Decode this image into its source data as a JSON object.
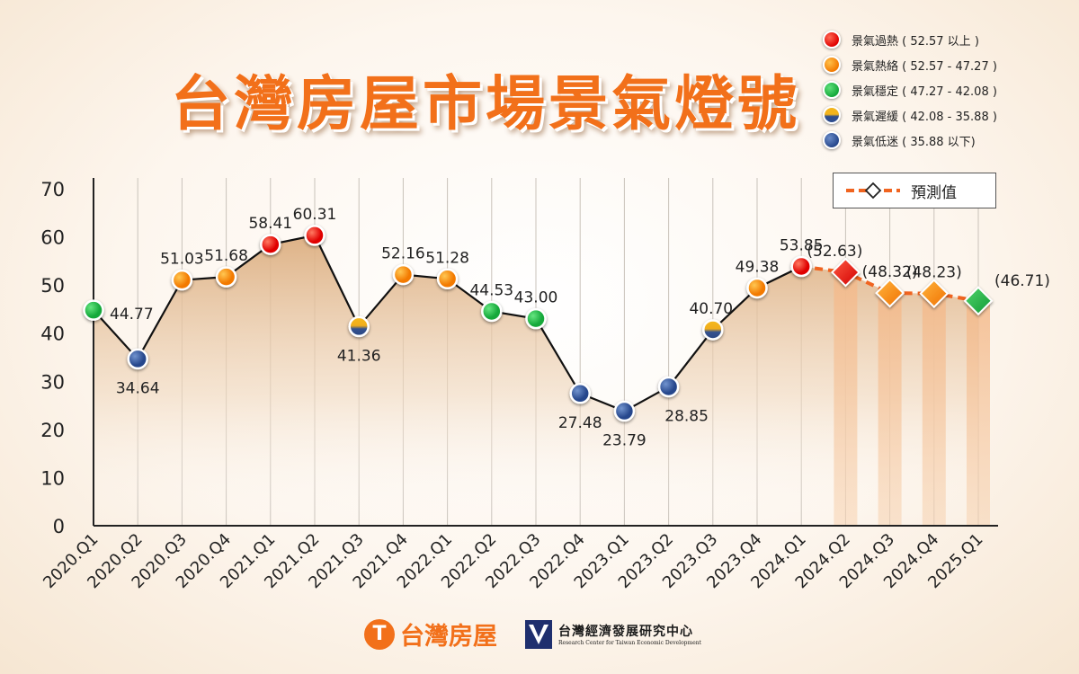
{
  "title": "台灣房屋市場景氣燈號",
  "legend": [
    {
      "color": "red",
      "label": "景氣過熱 ( 52.57 以上 )"
    },
    {
      "color": "orange",
      "label": "景氣熱絡 ( 52.57 - 47.27 )"
    },
    {
      "color": "green",
      "label": "景氣穩定 ( 47.27 - 42.08 )"
    },
    {
      "color": "yellowblue",
      "label": "景氣遲緩 ( 42.08 - 35.88 )"
    },
    {
      "color": "blue",
      "label": "景氣低迷 ( 35.88 以下)"
    }
  ],
  "forecast_legend_label": "預測值",
  "colors": {
    "red": "#e60000",
    "orange": "#f5820a",
    "green": "#1db547",
    "yellowblue": "#f3b41c",
    "blue": "#2f4e8f",
    "line": "#111111",
    "forecast_line": "#f06420",
    "area_top": "#e0b489",
    "forecast_bar": "#f5c9a3",
    "title": "#f2701a"
  },
  "chart_data": {
    "type": "line",
    "ylim": [
      0,
      70
    ],
    "yticks": [
      0,
      10,
      20,
      30,
      40,
      50,
      60,
      70
    ],
    "categories": [
      "2020.Q1",
      "2020.Q2",
      "2020.Q3",
      "2020.Q4",
      "2021.Q1",
      "2021.Q2",
      "2021.Q3",
      "2021.Q4",
      "2022.Q1",
      "2022.Q2",
      "2022.Q3",
      "2022.Q4",
      "2023.Q1",
      "2023.Q2",
      "2023.Q3",
      "2023.Q4",
      "2024.Q1",
      "2024.Q2",
      "2024.Q3",
      "2024.Q4",
      "2025.Q1"
    ],
    "series": [
      {
        "points": [
          {
            "x": "2020.Q1",
            "y": 44.77,
            "label": "44.77",
            "signal": "green"
          },
          {
            "x": "2020.Q2",
            "y": 34.64,
            "label": "34.64",
            "signal": "blue"
          },
          {
            "x": "2020.Q3",
            "y": 51.03,
            "label": "51.03",
            "signal": "orange"
          },
          {
            "x": "2020.Q4",
            "y": 51.68,
            "label": "51.68",
            "signal": "orange"
          },
          {
            "x": "2021.Q1",
            "y": 58.41,
            "label": "58.41",
            "signal": "red"
          },
          {
            "x": "2021.Q2",
            "y": 60.31,
            "label": "60.31",
            "signal": "red"
          },
          {
            "x": "2021.Q3",
            "y": 41.36,
            "label": "41.36",
            "signal": "yellowblue"
          },
          {
            "x": "2021.Q4",
            "y": 52.16,
            "label": "52.16",
            "signal": "orange"
          },
          {
            "x": "2022.Q1",
            "y": 51.28,
            "label": "51.28",
            "signal": "orange"
          },
          {
            "x": "2022.Q2",
            "y": 44.53,
            "label": "44.53",
            "signal": "green"
          },
          {
            "x": "2022.Q3",
            "y": 43.0,
            "label": "43.00",
            "signal": "green"
          },
          {
            "x": "2022.Q4",
            "y": 27.48,
            "label": "27.48",
            "signal": "blue"
          },
          {
            "x": "2023.Q1",
            "y": 23.79,
            "label": "23.79",
            "signal": "blue"
          },
          {
            "x": "2023.Q2",
            "y": 28.85,
            "label": "28.85",
            "signal": "blue"
          },
          {
            "x": "2023.Q3",
            "y": 40.7,
            "label": "40.70",
            "signal": "yellowblue"
          },
          {
            "x": "2023.Q4",
            "y": 49.38,
            "label": "49.38",
            "signal": "orange"
          },
          {
            "x": "2024.Q1",
            "y": 53.85,
            "label": "53.85",
            "signal": "red"
          }
        ]
      },
      {
        "forecast": true,
        "points": [
          {
            "x": "2024.Q2",
            "y": 52.63,
            "label": "(52.63)",
            "signal": "red"
          },
          {
            "x": "2024.Q3",
            "y": 48.32,
            "label": "(48.32)",
            "signal": "orange"
          },
          {
            "x": "2024.Q4",
            "y": 48.23,
            "label": "(48.23)",
            "signal": "orange"
          },
          {
            "x": "2025.Q1",
            "y": 46.71,
            "label": "(46.71)",
            "signal": "green"
          }
        ]
      }
    ],
    "grid": "vertical"
  },
  "logos": {
    "taiwan_realty": {
      "mark": "T",
      "name": "台灣房屋"
    },
    "tcd": {
      "name": "台灣經濟發展研究中心",
      "english": "Research Center for Taiwan Economic Development"
    }
  }
}
